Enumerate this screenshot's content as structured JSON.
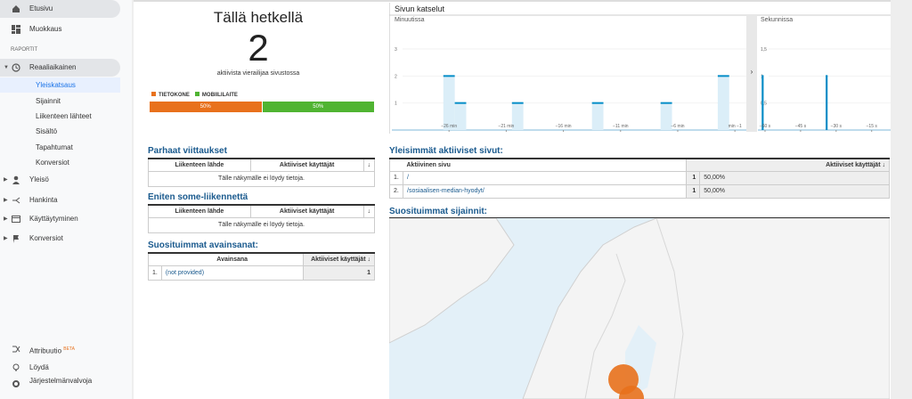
{
  "sidebar": {
    "top": [
      "Etusivu",
      "Muokkaus"
    ],
    "section": "RAPORTIT",
    "realtime": {
      "label": "Reaaliaikainen",
      "children": [
        "Yleiskatsaus",
        "Sijainnit",
        "Liikenteen lähteet",
        "Sisältö",
        "Tapahtumat",
        "Konversiot"
      ]
    },
    "reports": [
      "Yleisö",
      "Hankinta",
      "Käyttäytyminen",
      "Konversiot"
    ],
    "bottom": {
      "attribution": "Attribuutio",
      "badge": "BETA",
      "discover": "Löydä",
      "admin": "Järjestelmänvalvoja"
    }
  },
  "active_users": {
    "title": "Tällä hetkellä",
    "count": "2",
    "caption": "aktiivista vierailijaa sivustossa",
    "devices": {
      "names": [
        "TIETOKONE",
        "MOBIILILAITE"
      ],
      "colors": [
        "#e8711c",
        "#50b432"
      ],
      "values": [
        50,
        50
      ],
      "value_labels": [
        "50%",
        "50%"
      ]
    }
  },
  "pageviews_title": "Sivun katselut",
  "chart_data": [
    {
      "type": "bar",
      "title": "Minuutissa",
      "color": "#058dc7",
      "x": [
        -26,
        -25,
        -20,
        -13,
        -7,
        -2
      ],
      "values": [
        2,
        1,
        1,
        1,
        1,
        2
      ],
      "xlim": [
        -31,
        0
      ],
      "xticks": [
        {
          "value": -26,
          "label": "−26 min"
        },
        {
          "value": -21,
          "label": "−21 min"
        },
        {
          "value": -16,
          "label": "−16 min"
        },
        {
          "value": -11,
          "label": "−11 min"
        },
        {
          "value": -6,
          "label": "−6 min"
        },
        {
          "value": -1,
          "label": "min −1"
        }
      ],
      "ylim": [
        0,
        3
      ],
      "yticks": [
        1,
        2,
        3
      ]
    },
    {
      "type": "bar",
      "title": "Sekunnissa",
      "color": "#058dc7",
      "x": [
        -61,
        -34
      ],
      "values": [
        1,
        1
      ],
      "xlim": [
        -63,
        -7
      ],
      "xticks": [
        {
          "value": -60,
          "label": "−60 s"
        },
        {
          "value": -45,
          "label": "−45 s"
        },
        {
          "value": -30,
          "label": "−30 s"
        },
        {
          "value": -15,
          "label": "−15 s"
        }
      ],
      "ylim": [
        0,
        1.5
      ],
      "yticks": [
        {
          "value": 0.5,
          "label": "0,5"
        },
        1,
        {
          "value": 1.5,
          "label": "1,5"
        }
      ]
    }
  ],
  "referrals": {
    "title": "Parhaat viittaukset",
    "columns": [
      "Liikenteen lähde",
      "Aktiiviset käyttäjät"
    ],
    "empty": "Tälle näkymälle ei löydy tietoja."
  },
  "social": {
    "title": "Eniten some-liikennettä",
    "columns": [
      "Liikenteen lähde",
      "Aktiiviset käyttäjät"
    ],
    "empty": "Tälle näkymälle ei löydy tietoja."
  },
  "keywords": {
    "title": "Suosituimmat avainsanat:",
    "columns": [
      "Avainsana",
      "Aktiiviset käyttäjät"
    ],
    "rows": [
      [
        "1.",
        "(not provided)",
        "1"
      ]
    ]
  },
  "pages": {
    "title": "Yleisimmät aktiiviset sivut:",
    "columns": [
      "Aktiivinen sivu",
      "Aktiiviset käyttäjät"
    ],
    "rows": [
      [
        "1.",
        "/",
        "1",
        "50,00%"
      ],
      [
        "2.",
        "/sosiaalisen-median-hyodyt/",
        "1",
        "50,00%"
      ]
    ]
  },
  "locations": {
    "title": "Suosituimmat sijainnit:"
  }
}
